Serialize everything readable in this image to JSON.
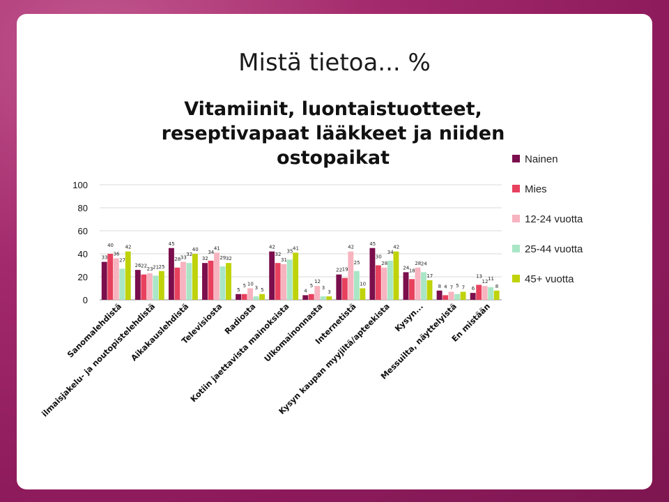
{
  "slide": {
    "title": "Mistä tietoa... %"
  },
  "chart_data": {
    "type": "bar",
    "title": "Vitamiinit, luontaistuotteet, reseptivapaat lääkkeet ja niiden ostopaikat",
    "title_lines": [
      "Vitamiinit, luontaistuotteet,",
      "reseptivapaat lääkkeet ja niiden",
      "ostopaikat"
    ],
    "xlabel": "",
    "ylabel": "",
    "ylim": [
      0,
      100
    ],
    "yticks": [
      0,
      20,
      40,
      60,
      80,
      100
    ],
    "grid": true,
    "legend_position": "right",
    "categories": [
      "Sanomalehdistä",
      "Ilmaisjakelu- ja noutopistelehdistä",
      "Aikakauslehdistä",
      "Televisiosta",
      "Radiosta",
      "Kotiin jaettavista mainoksista",
      "Ulkomainonnasta",
      "Internetistä",
      "Kysyn kaupan myyjiltä/apteekista",
      "Kysyn...",
      "Messuilta, näyttelyistä",
      "En mistään"
    ],
    "category_labels_shown": [
      "Sanomalehdistä",
      "ilmaisjakelu- ja noutopistelehdistä",
      "Aikakauslehdistä",
      "Televisiosta",
      "Radiosta",
      "Kotiin jaettavista mainoksista",
      "Ulkomainonnasta",
      "Internetistä",
      "Kysyn kaupan myyjiltä/apteekista",
      "Kysyn...",
      "Messuilta, näyttelyistä",
      "En mistään"
    ],
    "series": [
      {
        "name": "Nainen",
        "color": "#7b0e4c",
        "values": [
          33,
          26,
          45,
          32,
          5,
          42,
          4,
          22,
          45,
          24,
          8,
          6
        ]
      },
      {
        "name": "Mies",
        "color": "#e8415e",
        "values": [
          40,
          22,
          28,
          34,
          5,
          32,
          5,
          19,
          30,
          18,
          4,
          13
        ]
      },
      {
        "name": "12-24 vuotta",
        "color": "#f7b3bf",
        "values": [
          36,
          23,
          33,
          41,
          10,
          31,
          12,
          42,
          28,
          28,
          7,
          12
        ]
      },
      {
        "name": "25-44 vuotta",
        "color": "#a9e6c6",
        "values": [
          27,
          21,
          32,
          29,
          3,
          35,
          3,
          25,
          34,
          24,
          5,
          11
        ]
      },
      {
        "name": "45+ vuotta",
        "color": "#bfd20a",
        "values": [
          42,
          25,
          40,
          32,
          5,
          41,
          3,
          10,
          42,
          17,
          7,
          8
        ]
      }
    ]
  }
}
